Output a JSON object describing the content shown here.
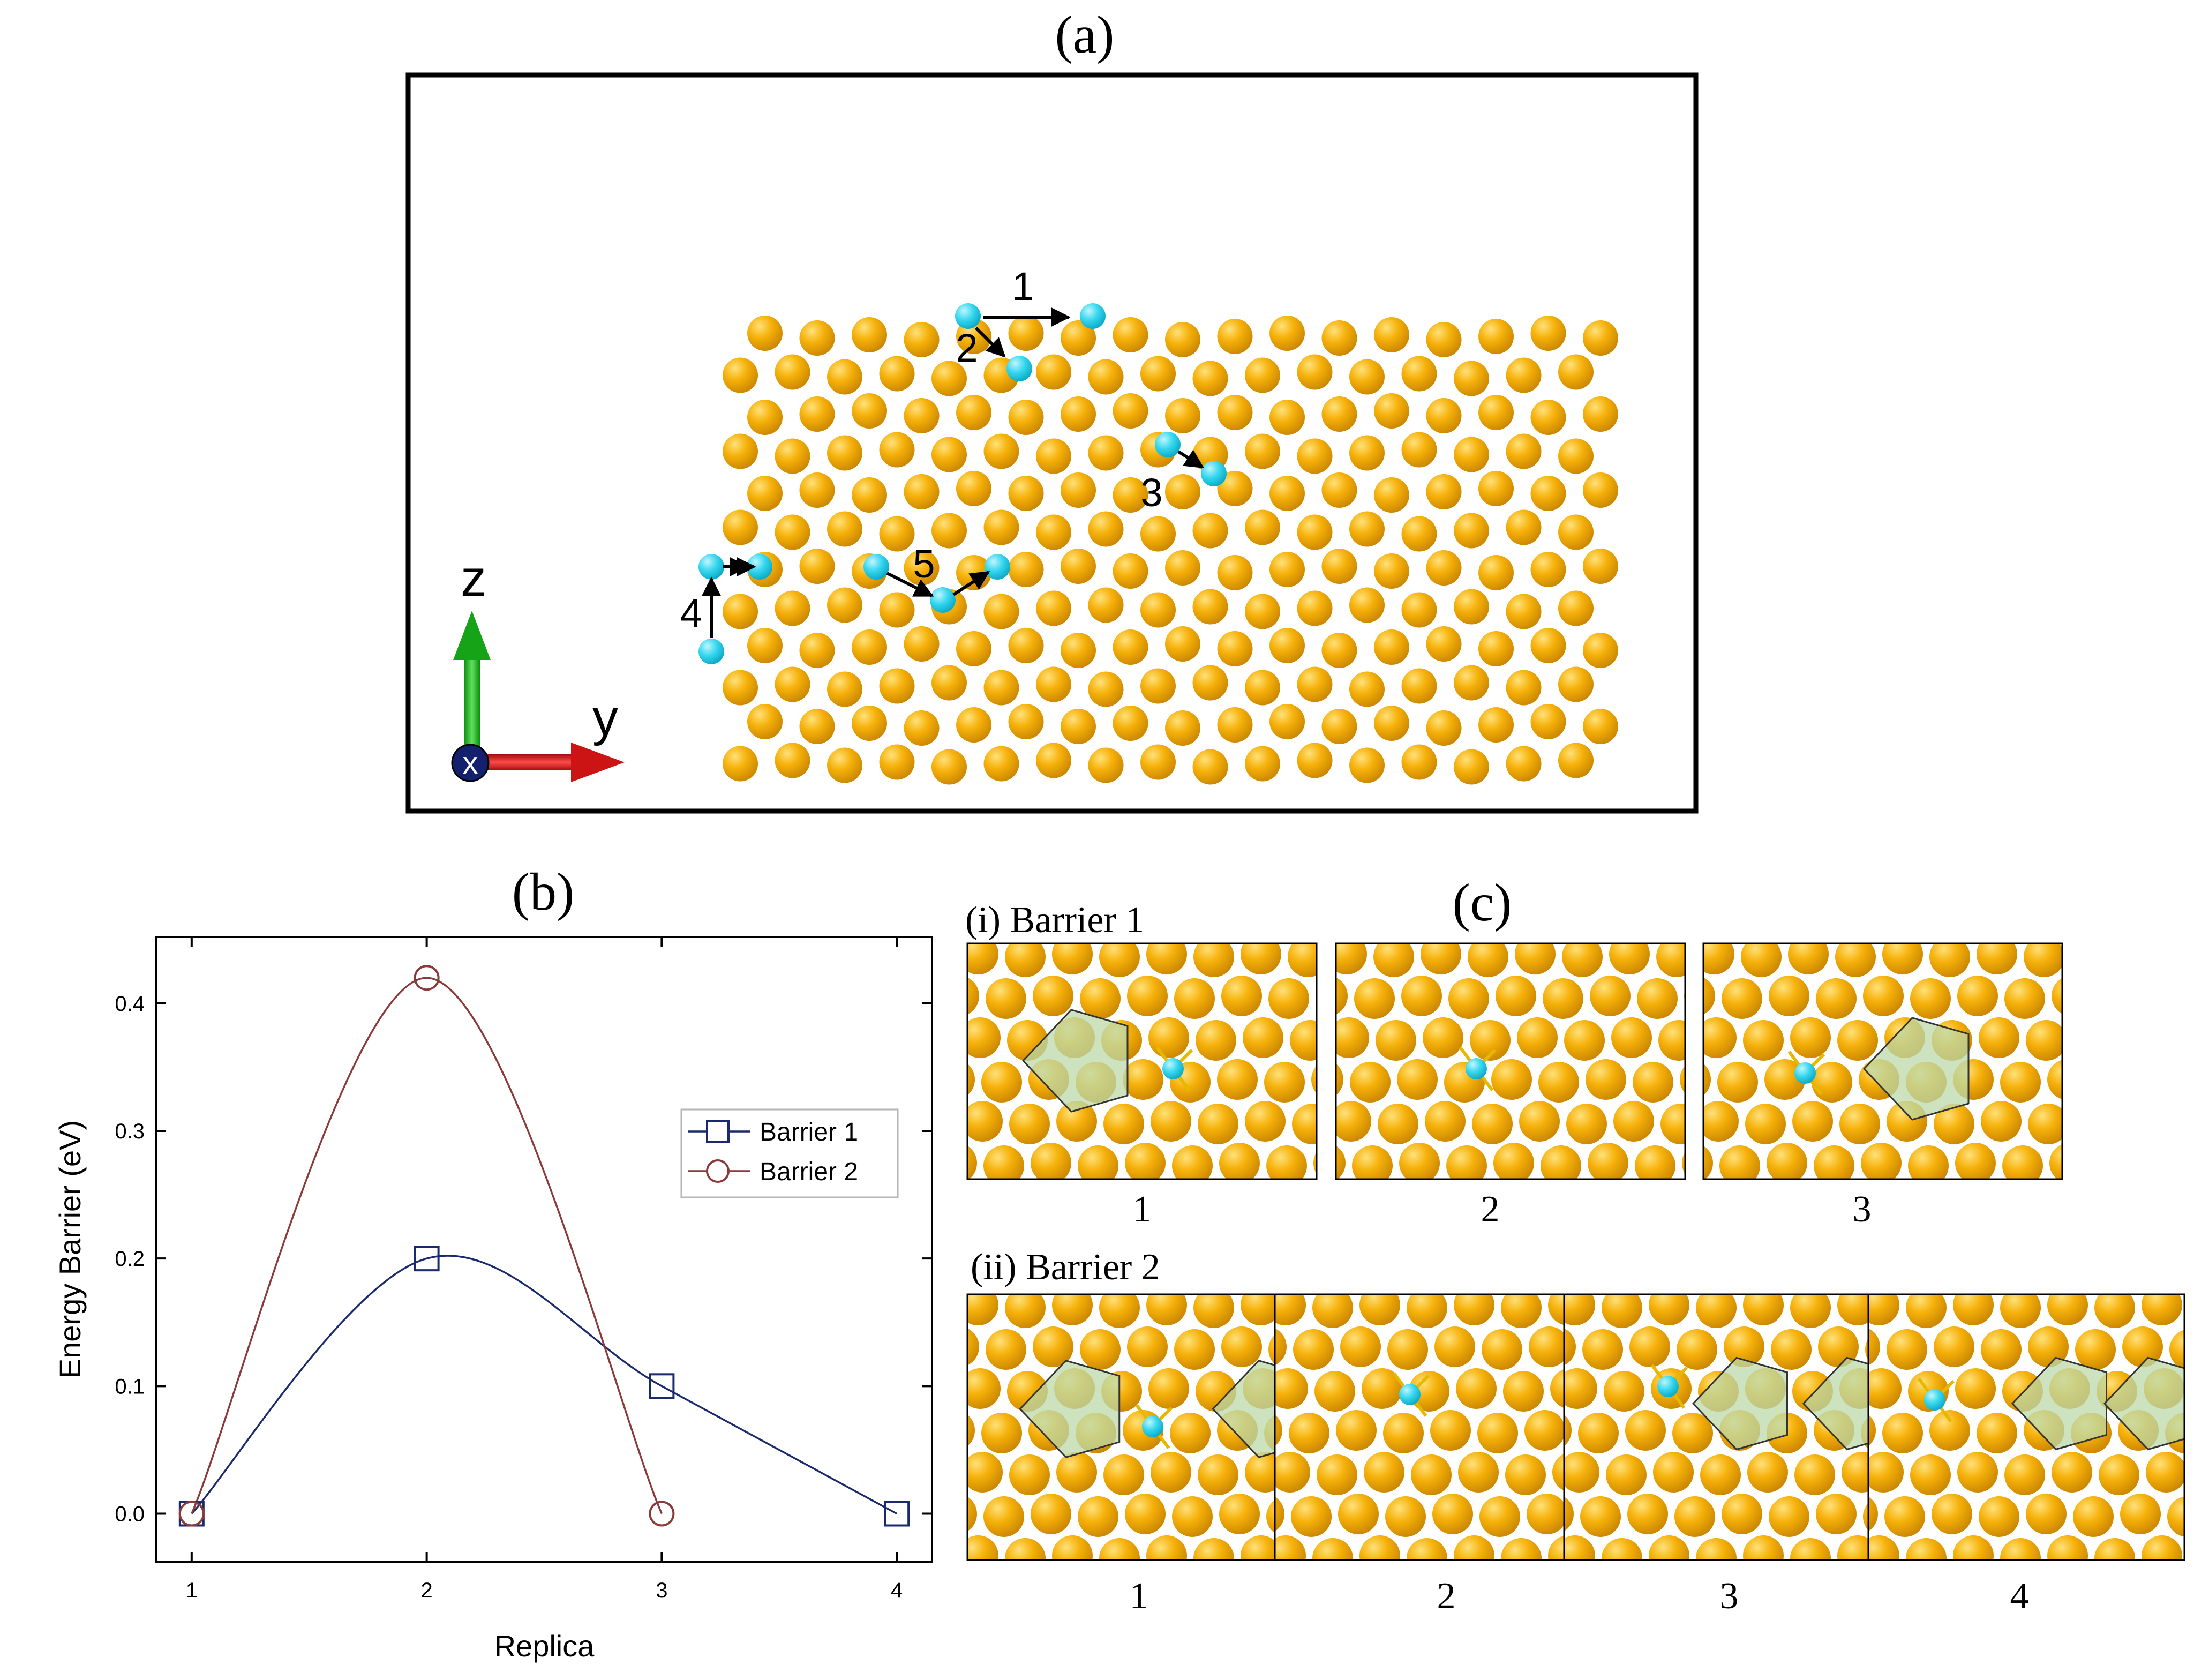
{
  "panel_a": {
    "label": "(a)",
    "path_labels": [
      "1",
      "2",
      "3",
      "4",
      "5"
    ],
    "axes": {
      "z_label": "z",
      "y_label": "y",
      "x_label": "x"
    },
    "colors": {
      "host_atom": "#f2a900",
      "adatom": "#2fd3ec",
      "z_axis": "#1fb21f",
      "y_axis": "#d41c1c",
      "x_axis": "#101c6e"
    }
  },
  "panel_b": {
    "label": "(b)"
  },
  "panel_c": {
    "label": "(c)",
    "row1": {
      "title": "(i) Barrier 1",
      "frame_labels": [
        "1",
        "2",
        "3"
      ]
    },
    "row2": {
      "title": "(ii) Barrier 2",
      "frame_labels": [
        "1",
        "2",
        "3",
        "4"
      ]
    }
  },
  "chart_data": {
    "type": "line",
    "xlabel": "Replica",
    "ylabel": "Energy Barrier (eV)",
    "xlim": [
      0.85,
      4.15
    ],
    "ylim": [
      -0.038,
      0.452
    ],
    "xticks": [
      1,
      2,
      3,
      4
    ],
    "yticks": [
      0.0,
      0.1,
      0.2,
      0.3,
      0.4
    ],
    "yticklabels": [
      "0.0",
      "0.1",
      "0.2",
      "0.3",
      "0.4"
    ],
    "grid": false,
    "legend_position": "right",
    "series": [
      {
        "name": "Barrier 1",
        "x": [
          1,
          2,
          3,
          4
        ],
        "y": [
          0.0,
          0.2,
          0.1,
          0.0
        ],
        "marker": "square",
        "color": "#1a2a6c"
      },
      {
        "name": "Barrier 2",
        "x": [
          1,
          2,
          3
        ],
        "y": [
          0.0,
          0.42,
          0.0
        ],
        "marker": "circle",
        "color": "#8b3a3a"
      }
    ]
  }
}
